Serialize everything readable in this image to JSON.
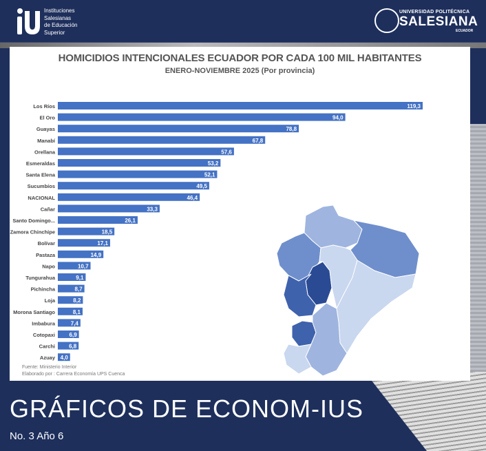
{
  "header": {
    "left_logo": {
      "line1": "Instituciones",
      "line2": "Salesianas",
      "line3": "de Educación",
      "line4": "Superior"
    },
    "right_logo": {
      "top": "UNIVERSIDAD POLITÉCNICA",
      "main": "SALESIANA",
      "sub": "ECUADOR"
    }
  },
  "chart_data": {
    "type": "bar",
    "orientation": "horizontal",
    "title": "HOMICIDIOS INTENCIONALES ECUADOR POR CADA 100 MIL HABITANTES",
    "subtitle": "ENERO-NOVIEMBRE 2025 (Por provincia)",
    "categories": [
      "Los Ríos",
      "El Oro",
      "Guayas",
      "Manabí",
      "Orellana",
      "Esmeraldas",
      "Santa Elena",
      "Sucumbíos",
      "NACIONAL",
      "Cañar",
      "Santo Domingo...",
      "Zamora Chinchipe",
      "Bolívar",
      "Pastaza",
      "Napo",
      "Tungurahua",
      "Pichincha",
      "Loja",
      "Morona Santiago",
      "Imbabura",
      "Cotopaxi",
      "Carchi",
      "Azuay"
    ],
    "values": [
      119.3,
      94.0,
      78.8,
      67.8,
      57.6,
      53.2,
      52.1,
      49.5,
      46.4,
      33.3,
      26.1,
      18.5,
      17.1,
      14.9,
      10.7,
      9.1,
      8.7,
      8.2,
      8.1,
      7.4,
      6.9,
      6.8,
      4.0
    ],
    "value_labels": [
      "119,3",
      "94,0",
      "78,8",
      "67,8",
      "57,6",
      "53,2",
      "52,1",
      "49,5",
      "46,4",
      "33,3",
      "26,1",
      "18,5",
      "17,1",
      "14,9",
      "10,7",
      "9,1",
      "8,7",
      "8,2",
      "8,1",
      "7,4",
      "6,9",
      "6,8",
      "4,0"
    ],
    "bar_color": "#4472c4",
    "grid": false
  },
  "footnotes": {
    "source": "Fuente: Ministerio Interior",
    "author": "Elaborado por : Carrera Economía UPS Cuenca"
  },
  "map": {
    "icon": "ecuador-map-icon",
    "colors": [
      "#c9d7ef",
      "#9fb5df",
      "#6f8fcc",
      "#3f62ad",
      "#2a4b94"
    ]
  },
  "footer": {
    "title": "GRÁFICOS DE ECONOM-IUS",
    "issue": "No. 3 Año 6"
  }
}
